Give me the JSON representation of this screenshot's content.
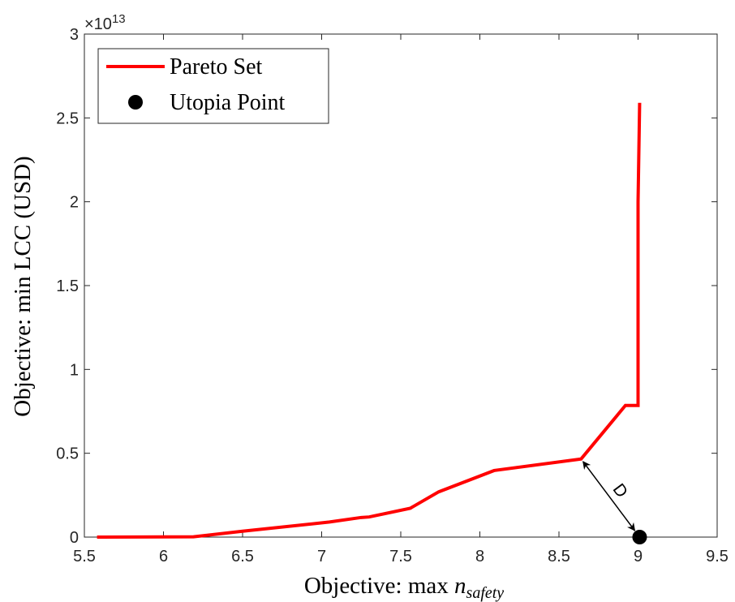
{
  "chart_data": {
    "type": "line",
    "xlabel_main": "Objective: max ",
    "xlabel_var": "n",
    "xlabel_sub": "safety",
    "ylabel": "Objective: min LCC (USD)",
    "y_exponent_base": "×10",
    "y_exponent_power": "13",
    "xlim": [
      5.5,
      9.5
    ],
    "ylim": [
      0,
      3
    ],
    "y_scale_factor": 10000000000000.0,
    "x_ticks": [
      5.5,
      6,
      6.5,
      7,
      7.5,
      8,
      8.5,
      9,
      9.5
    ],
    "x_tick_labels": [
      "5.5",
      "6",
      "6.5",
      "7",
      "7.5",
      "8",
      "8.5",
      "9",
      "9.5"
    ],
    "y_ticks": [
      0,
      0.5,
      1,
      1.5,
      2,
      2.5,
      3
    ],
    "y_tick_labels": [
      "0",
      "0.5",
      "1",
      "1.5",
      "2",
      "2.5",
      "3"
    ],
    "grid": false,
    "legend_position": "top-left",
    "series": [
      {
        "name": "Pareto Set",
        "kind": "line",
        "color": "#ff0000",
        "x": [
          5.58,
          6.19,
          6.5,
          7.05,
          7.25,
          7.3,
          7.56,
          7.74,
          8.09,
          8.64,
          8.92,
          9.0,
          9.0,
          9.01
        ],
        "y": [
          0.0,
          0.002,
          0.035,
          0.09,
          0.117,
          0.12,
          0.172,
          0.27,
          0.397,
          0.466,
          0.785,
          0.785,
          2.0,
          2.59
        ]
      },
      {
        "name": "Utopia Point",
        "kind": "marker",
        "color": "#000000",
        "x": [
          9.01
        ],
        "y": [
          0.0
        ]
      }
    ],
    "annotations": [
      {
        "text": "D",
        "from": [
          8.64,
          0.466
        ],
        "to": [
          9.01,
          0.0
        ]
      }
    ]
  }
}
